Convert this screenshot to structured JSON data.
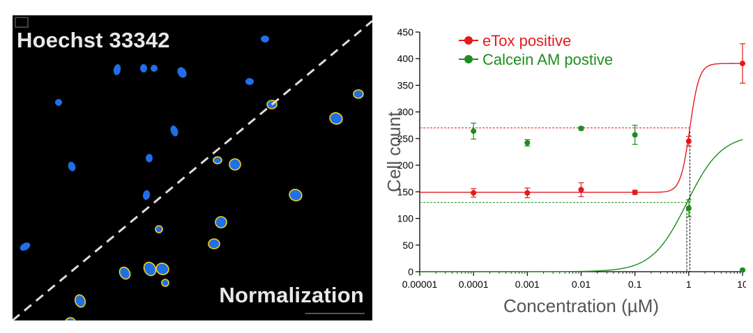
{
  "image_panel": {
    "title": "Hoechst 33342",
    "subtitle": "Normalization",
    "nucleus_color": "#1f6fe8",
    "outline_color": "#f2d21b",
    "background": "#000000"
  },
  "chart_data": {
    "type": "scatter",
    "xscale": "log",
    "xlabel": "Concentration (µM)",
    "ylabel": "Cell count",
    "xlim": [
      1e-05,
      10
    ],
    "ylim": [
      0,
      450
    ],
    "x_ticks": [
      "0.00001",
      "0.0001",
      "0.001",
      "0.01",
      "0.1",
      "1",
      "10"
    ],
    "y_ticks": [
      "0",
      "50",
      "100",
      "150",
      "200",
      "250",
      "300",
      "350",
      "400",
      "450"
    ],
    "legend_position": "top-left",
    "grid": false,
    "series": [
      {
        "name": "eTox positive",
        "color": "#e31a1c",
        "x": [
          0.0001,
          0.001,
          0.01,
          0.1,
          1,
          10
        ],
        "y": [
          148,
          148,
          154,
          149,
          245,
          391
        ],
        "err": [
          8,
          9,
          13,
          4,
          9,
          37
        ],
        "fit": {
          "bottom": 149,
          "top": 391,
          "ec50": 1.05,
          "hill": 5
        },
        "ec50_line_y": 270
      },
      {
        "name": "Calcein AM postive",
        "color": "#1e8c1e",
        "x": [
          0.0001,
          0.001,
          0.01,
          0.1,
          1,
          10
        ],
        "y": [
          264,
          242,
          269,
          257,
          119,
          3
        ],
        "err": [
          15,
          6,
          3,
          18,
          16,
          2
        ],
        "fit": {
          "top": 258,
          "bottom": 0,
          "ec50": 0.92,
          "hill": 1.35
        },
        "ec50_line_y": 130
      }
    ]
  }
}
